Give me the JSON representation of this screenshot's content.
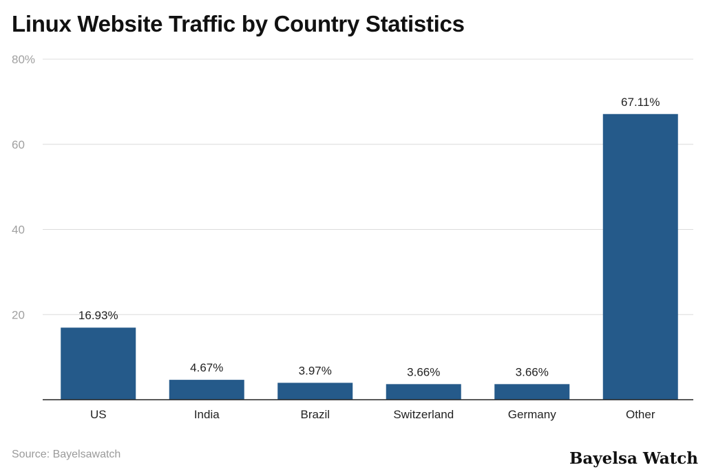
{
  "chart_data": {
    "type": "bar",
    "title": "Linux Website Traffic by Country Statistics",
    "categories": [
      "US",
      "India",
      "Brazil",
      "Switzerland",
      "Germany",
      "Other"
    ],
    "values": [
      16.93,
      4.67,
      3.97,
      3.66,
      3.66,
      67.11
    ],
    "data_labels": [
      "16.93%",
      "4.67%",
      "3.97%",
      "3.66%",
      "3.66%",
      "67.11%"
    ],
    "ylim": [
      0,
      80
    ],
    "yticks": [
      20,
      40,
      60,
      80
    ],
    "ytick_labels": [
      "20",
      "40",
      "60",
      "80%"
    ],
    "grid": true,
    "bar_color": "#255a8a",
    "xlabel": "",
    "ylabel": ""
  },
  "source": "Source: Bayelsawatch",
  "brand": "Bayelsa Watch"
}
